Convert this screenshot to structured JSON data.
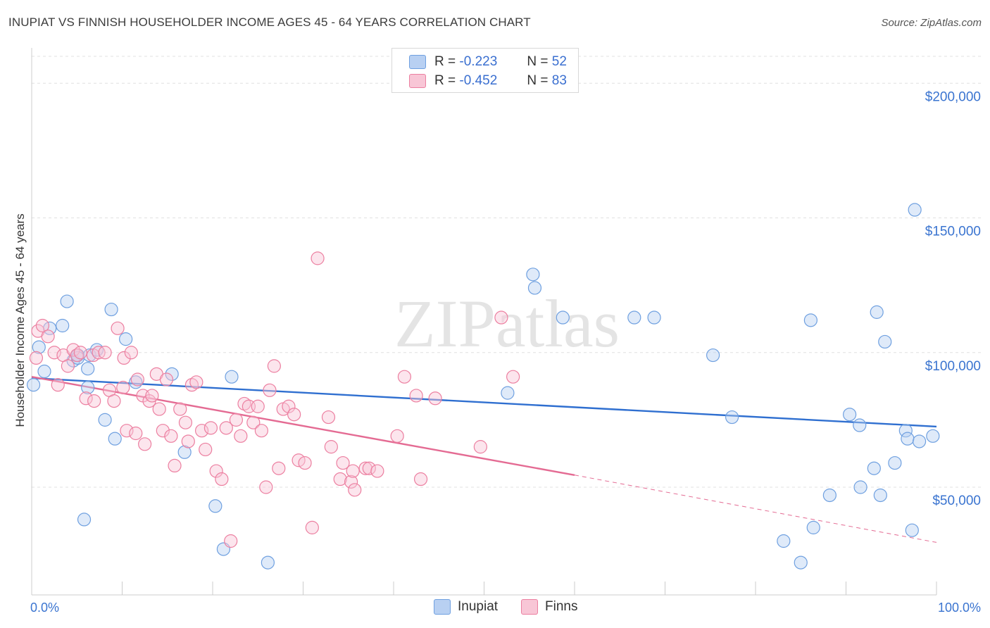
{
  "title": "INUPIAT VS FINNISH HOUSEHOLDER INCOME AGES 45 - 64 YEARS CORRELATION CHART",
  "source": "Source: ZipAtlas.com",
  "watermark": "ZIPatlas",
  "legend": {
    "r_label": "R =",
    "n_label": "N =",
    "series": [
      {
        "name": "Inupiat",
        "r": "-0.223",
        "n": "52",
        "color": "#6fa0e0",
        "fill": "#b8d0f2"
      },
      {
        "name": "Finns",
        "r": "-0.452",
        "n": "83",
        "color": "#ec7fa0",
        "fill": "#f8c6d6"
      }
    ]
  },
  "chart_data": {
    "type": "scatter",
    "title": "INUPIAT VS FINNISH HOUSEHOLDER INCOME AGES 45 - 64 YEARS CORRELATION CHART",
    "xlabel": "",
    "ylabel": "Householder Income Ages 45 - 64 years",
    "xlim": [
      0,
      100
    ],
    "ylim": [
      10000,
      210000
    ],
    "x_tick_labels": [
      "0.0%",
      "100.0%"
    ],
    "y_ticks": [
      50000,
      100000,
      150000,
      200000
    ],
    "y_tick_labels": [
      "$50,000",
      "$100,000",
      "$150,000",
      "$200,000"
    ],
    "grid": true,
    "legend_position": "top-center",
    "series": [
      {
        "name": "Inupiat",
        "color": "#3a74d0",
        "points": [
          [
            0.2,
            88000
          ],
          [
            0.8,
            102000
          ],
          [
            1.4,
            93000
          ],
          [
            2.0,
            109000
          ],
          [
            3.4,
            110000
          ],
          [
            3.9,
            119000
          ],
          [
            4.6,
            97000
          ],
          [
            5.1,
            99000
          ],
          [
            5.1,
            98000
          ],
          [
            6.2,
            94000
          ],
          [
            6.2,
            87000
          ],
          [
            6.4,
            99000
          ],
          [
            7.2,
            101000
          ],
          [
            8.1,
            75000
          ],
          [
            9.2,
            68000
          ],
          [
            8.8,
            116000
          ],
          [
            10.4,
            105000
          ],
          [
            11.5,
            89000
          ],
          [
            15.5,
            92000
          ],
          [
            16.9,
            63000
          ],
          [
            20.3,
            43000
          ],
          [
            21.2,
            27000
          ],
          [
            22.1,
            91000
          ],
          [
            26.1,
            22000
          ],
          [
            5.8,
            38000
          ],
          [
            52.6,
            85000
          ],
          [
            55.4,
            129000
          ],
          [
            55.6,
            124000
          ],
          [
            58.7,
            113000
          ],
          [
            66.6,
            113000
          ],
          [
            68.8,
            113000
          ],
          [
            75.3,
            99000
          ],
          [
            77.4,
            76000
          ],
          [
            83.1,
            30000
          ],
          [
            85.0,
            22000
          ],
          [
            86.1,
            112000
          ],
          [
            86.4,
            35000
          ],
          [
            88.2,
            47000
          ],
          [
            90.4,
            77000
          ],
          [
            91.5,
            73000
          ],
          [
            91.6,
            50000
          ],
          [
            93.1,
            57000
          ],
          [
            93.4,
            115000
          ],
          [
            93.8,
            47000
          ],
          [
            94.3,
            104000
          ],
          [
            95.4,
            59000
          ],
          [
            96.6,
            71000
          ],
          [
            96.8,
            68000
          ],
          [
            97.3,
            34000
          ],
          [
            98.1,
            67000
          ],
          [
            99.6,
            69000
          ],
          [
            97.6,
            153000
          ]
        ]
      },
      {
        "name": "Finns",
        "color": "#e46b93",
        "points": [
          [
            0.5,
            98000
          ],
          [
            0.7,
            108000
          ],
          [
            1.2,
            110000
          ],
          [
            1.8,
            106000
          ],
          [
            2.5,
            100000
          ],
          [
            2.9,
            88000
          ],
          [
            3.5,
            99000
          ],
          [
            4.0,
            95000
          ],
          [
            4.6,
            101000
          ],
          [
            5.0,
            99000
          ],
          [
            5.4,
            100000
          ],
          [
            6.0,
            83000
          ],
          [
            6.8,
            99000
          ],
          [
            6.9,
            82000
          ],
          [
            7.4,
            100000
          ],
          [
            8.1,
            100000
          ],
          [
            8.6,
            86000
          ],
          [
            9.1,
            82000
          ],
          [
            9.5,
            109000
          ],
          [
            10.1,
            87000
          ],
          [
            10.2,
            98000
          ],
          [
            10.5,
            71000
          ],
          [
            11.0,
            100000
          ],
          [
            11.5,
            70000
          ],
          [
            11.7,
            90000
          ],
          [
            12.3,
            84000
          ],
          [
            12.5,
            66000
          ],
          [
            13.0,
            82000
          ],
          [
            13.3,
            84000
          ],
          [
            13.8,
            92000
          ],
          [
            14.1,
            79000
          ],
          [
            14.5,
            71000
          ],
          [
            14.9,
            90000
          ],
          [
            15.4,
            69000
          ],
          [
            15.8,
            58000
          ],
          [
            16.4,
            79000
          ],
          [
            17.0,
            74000
          ],
          [
            17.3,
            67000
          ],
          [
            17.7,
            88000
          ],
          [
            18.2,
            89000
          ],
          [
            18.8,
            71000
          ],
          [
            19.2,
            64000
          ],
          [
            19.8,
            72000
          ],
          [
            20.4,
            56000
          ],
          [
            21.0,
            53000
          ],
          [
            21.5,
            72000
          ],
          [
            22.0,
            30000
          ],
          [
            22.6,
            75000
          ],
          [
            23.1,
            69000
          ],
          [
            23.5,
            81000
          ],
          [
            24.0,
            80000
          ],
          [
            24.5,
            74000
          ],
          [
            25.0,
            80000
          ],
          [
            25.4,
            71000
          ],
          [
            25.9,
            50000
          ],
          [
            26.3,
            86000
          ],
          [
            26.8,
            95000
          ],
          [
            27.3,
            57000
          ],
          [
            27.8,
            79000
          ],
          [
            28.4,
            80000
          ],
          [
            29.0,
            77000
          ],
          [
            29.5,
            60000
          ],
          [
            30.2,
            59000
          ],
          [
            31.0,
            35000
          ],
          [
            31.6,
            135000
          ],
          [
            32.8,
            76000
          ],
          [
            33.1,
            65000
          ],
          [
            34.1,
            53000
          ],
          [
            34.4,
            59000
          ],
          [
            35.3,
            52000
          ],
          [
            35.5,
            56000
          ],
          [
            35.7,
            49000
          ],
          [
            36.9,
            57000
          ],
          [
            37.3,
            57000
          ],
          [
            38.2,
            56000
          ],
          [
            40.4,
            69000
          ],
          [
            41.2,
            91000
          ],
          [
            42.5,
            84000
          ],
          [
            43.0,
            53000
          ],
          [
            44.6,
            83000
          ],
          [
            49.6,
            65000
          ],
          [
            51.9,
            113000
          ],
          [
            53.2,
            91000
          ]
        ]
      }
    ],
    "trend_lines": [
      {
        "series": "Inupiat",
        "x": [
          0,
          100
        ],
        "y": [
          90500,
          72500
        ],
        "style": "solid"
      },
      {
        "series": "Finns",
        "x": [
          0,
          60
        ],
        "y": [
          91000,
          54500
        ],
        "style": "solid"
      },
      {
        "series": "Finns",
        "x": [
          60,
          100
        ],
        "y": [
          54500,
          29500
        ],
        "style": "dashed"
      }
    ]
  }
}
